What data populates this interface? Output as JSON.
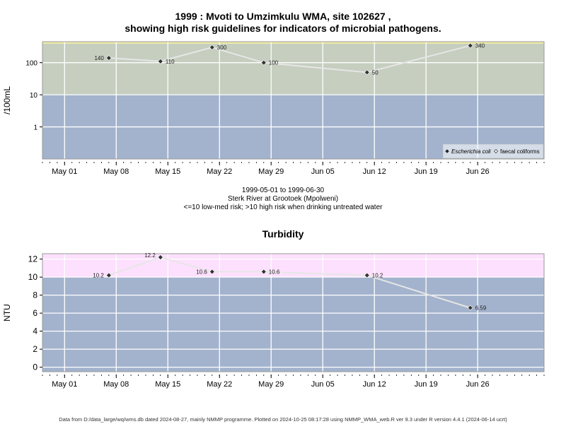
{
  "titles": {
    "line1": "1999 : Mvoti to Umzimkulu WMA, site 102627 ,",
    "line2": "showing high risk guidelines for indicators of microbial pathogens.",
    "subtitle1": "1999-05-01 to 1999-06-30",
    "subtitle2": "Sterk River at Grootoek (Mpolweni)",
    "subtitle3": "<=10 low-med risk; >10 high risk when drinking untreated water",
    "turbidity": "Turbidity"
  },
  "footnote": "Data from D:/data_large/wq/wms.db dated 2024-08-27, mainly NMMP programme. Plotted on 2024-10-25 08:17:28 using NMMP_WMA_web.R ver 9.3 under R version 4.4.1 (2024-06-14 ucrt)",
  "colors": {
    "low_risk_band": "#a3b3cd",
    "high_risk_band_microbial": "#c5cebf",
    "high_risk_band_turbidity": "#fde0fd",
    "top_strip_microbial": "#ece9a8",
    "grid": "#ffffff",
    "line": "#e6e6e6",
    "marker": "#333333"
  },
  "chart_data": [
    {
      "type": "line",
      "title": "",
      "xlabel": "",
      "ylabel": "/100mL",
      "yscale": "log",
      "ylim": [
        0.1,
        450
      ],
      "threshold": 10,
      "xlim": [
        "1999-04-28",
        "1999-07-05"
      ],
      "x_ticks": [
        "1999-05-01",
        "1999-05-08",
        "1999-05-15",
        "1999-05-22",
        "1999-05-29",
        "1999-06-05",
        "1999-06-12",
        "1999-06-19",
        "1999-06-26"
      ],
      "x_tick_labels": [
        "May 01",
        "May 08",
        "May 15",
        "May 22",
        "May 29",
        "Jun 05",
        "Jun 12",
        "Jun 19",
        "Jun 26"
      ],
      "y_ticks": [
        1,
        10,
        100
      ],
      "y_tick_labels": [
        "1",
        "10",
        "100"
      ],
      "legend": {
        "position": "bottom-right",
        "entries": [
          {
            "name": "Escherichia coli",
            "marker": "filled-diamond",
            "italic": true
          },
          {
            "name": "faecal coliforms",
            "marker": "open-diamond",
            "italic": false
          }
        ]
      },
      "series": [
        {
          "name": "Escherichia coli",
          "x": [
            "1999-05-07",
            "1999-05-14",
            "1999-05-21",
            "1999-05-28",
            "1999-06-11",
            "1999-06-25"
          ],
          "values": [
            140,
            110,
            300,
            100,
            50,
            340
          ],
          "labels": [
            "140",
            "110",
            "300",
            "100",
            "50",
            "340"
          ]
        }
      ]
    },
    {
      "type": "line",
      "title": "Turbidity",
      "xlabel": "",
      "ylabel": "NTU",
      "ylim": [
        -0.5,
        12.6
      ],
      "threshold": 10,
      "xlim": [
        "1999-04-28",
        "1999-07-05"
      ],
      "x_ticks": [
        "1999-05-01",
        "1999-05-08",
        "1999-05-15",
        "1999-05-22",
        "1999-05-29",
        "1999-06-05",
        "1999-06-12",
        "1999-06-19",
        "1999-06-26"
      ],
      "x_tick_labels": [
        "May 01",
        "May 08",
        "May 15",
        "May 22",
        "May 29",
        "Jun 05",
        "Jun 12",
        "Jun 19",
        "Jun 26"
      ],
      "y_ticks": [
        0,
        2,
        4,
        6,
        8,
        10,
        12
      ],
      "y_tick_labels": [
        "0",
        "2",
        "4",
        "6",
        "8",
        "10",
        "12"
      ],
      "series": [
        {
          "name": "Turbidity",
          "x": [
            "1999-05-07",
            "1999-05-14",
            "1999-05-21",
            "1999-05-28",
            "1999-06-11",
            "1999-06-25"
          ],
          "values": [
            10.2,
            12.2,
            10.6,
            10.6,
            10.2,
            6.59
          ],
          "labels": [
            "10.2",
            "12.2",
            "10.6",
            "10.6",
            "10.2",
            "6.59"
          ]
        }
      ]
    }
  ]
}
